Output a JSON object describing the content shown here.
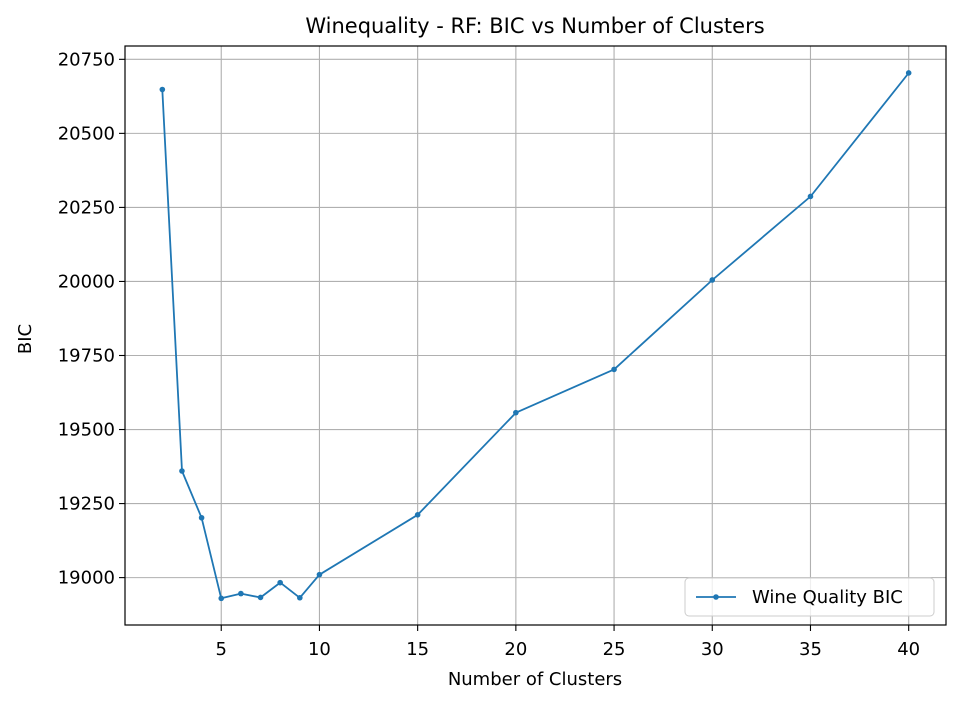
{
  "chart_data": {
    "type": "line",
    "title": "Winequality - RF: BIC vs Number of Clusters",
    "xlabel": "Number of Clusters",
    "ylabel": "BIC",
    "xlim": [
      0.1,
      41.9
    ],
    "ylim": [
      18840,
      20795
    ],
    "xticks": [
      5,
      10,
      15,
      20,
      25,
      30,
      35,
      40
    ],
    "yticks": [
      19000,
      19250,
      19500,
      19750,
      20000,
      20250,
      20500,
      20750
    ],
    "grid": true,
    "legend_position": "lower-right",
    "series": [
      {
        "name": "Wine Quality BIC",
        "color": "#1f77b4",
        "marker": "circle",
        "x": [
          2,
          3,
          4,
          5,
          6,
          7,
          8,
          9,
          10,
          15,
          20,
          25,
          30,
          35,
          40
        ],
        "y": [
          20648,
          19360,
          19202,
          18930,
          18946,
          18933,
          18983,
          18932,
          19010,
          19212,
          19557,
          19703,
          20005,
          20287,
          20704
        ]
      }
    ]
  }
}
